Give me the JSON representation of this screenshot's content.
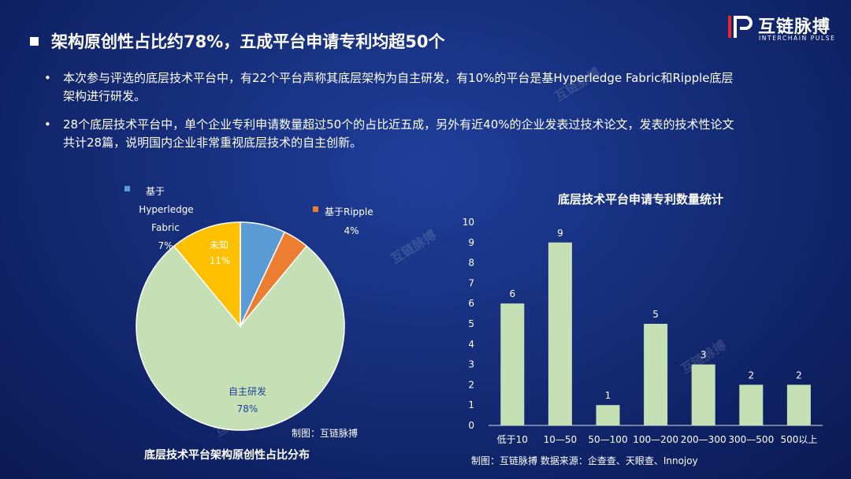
{
  "logo": {
    "cn": "互链脉搏",
    "en": "INTERCHAIN PULSE"
  },
  "heading": "架构原创性占比约78%，五成平台申请专利均超50个",
  "bullets": [
    "本次参与评选的底层技术平台中，有22个平台声称其底层架构为自主研发，有10%的平台是基Hyperledge Fabric和Ripple底层架构进行研发。",
    "28个底层技术平台中，单个企业专利申请数量超过50个的占比近五成，另外有近40%的企业发表过技术论文，发表的技术性论文共计28篇，说明国内企业非常重视底层技术的自主创新。"
  ],
  "watermark": "互链脉搏",
  "colors": {
    "blue": "#5b9bd5",
    "orange": "#ed7d31",
    "yellow": "#ffc000",
    "green": "#c5e0b4",
    "bar": "#c5e0b4"
  },
  "pie": {
    "caption": "底层技术平台架构原创性占比分布",
    "credit": "制图：互链脉搏"
  },
  "bar": {
    "credit": "制图：互链脉搏  数据来源：企查查、天眼查、Innojoy"
  },
  "chart_data": [
    {
      "type": "pie",
      "title": "底层技术平台架构原创性占比分布",
      "slices": [
        {
          "label": "基于Hyperledge Fabric",
          "value": 7,
          "label_text": "7%",
          "color": "#5b9bd5"
        },
        {
          "label": "基于Ripple",
          "value": 4,
          "label_text": "4%",
          "color": "#ed7d31"
        },
        {
          "label": "自主研发",
          "value": 78,
          "label_text": "78%",
          "color": "#c5e0b4"
        },
        {
          "label": "未知",
          "value": 11,
          "label_text": "11%",
          "color": "#ffc000"
        }
      ]
    },
    {
      "type": "bar",
      "title": "底层技术平台申请专利数量统计",
      "categories": [
        "低于10",
        "10—50",
        "50—100",
        "100—200",
        "200—300",
        "300—500",
        "500以上"
      ],
      "values": [
        6,
        9,
        1,
        5,
        3,
        2,
        2
      ],
      "ylim": [
        0,
        10
      ],
      "yticks": [
        0,
        1,
        2,
        3,
        4,
        5,
        6,
        7,
        8,
        9,
        10
      ],
      "grid": false,
      "color": "#c5e0b4"
    }
  ]
}
